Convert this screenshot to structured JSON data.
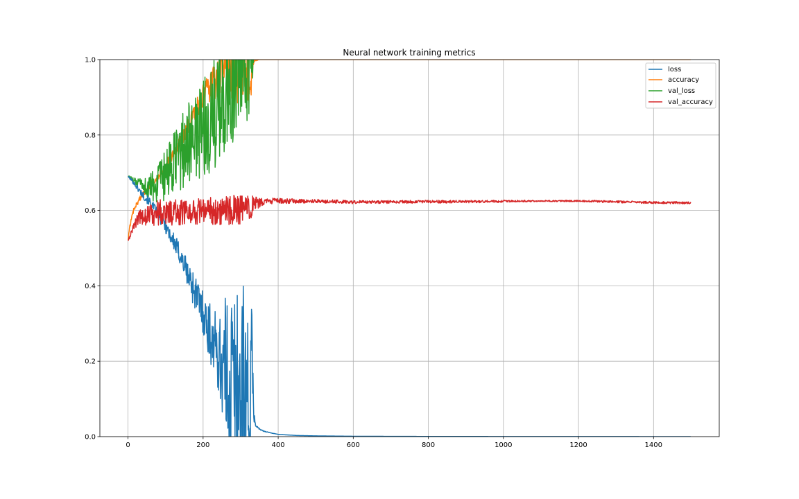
{
  "chart_data": {
    "type": "line",
    "title": "Neural network training metrics",
    "xlabel": "",
    "ylabel": "",
    "xlim": [
      -75,
      1575
    ],
    "ylim": [
      0.0,
      1.0
    ],
    "xticks": [
      0,
      200,
      400,
      600,
      800,
      1000,
      1200,
      1400
    ],
    "xtick_labels": [
      "0",
      "200",
      "400",
      "600",
      "800",
      "1000",
      "1200",
      "1400"
    ],
    "yticks": [
      0.0,
      0.2,
      0.4,
      0.6,
      0.8,
      1.0
    ],
    "ytick_labels": [
      "0.0",
      "0.2",
      "0.4",
      "0.6",
      "0.8",
      "1.0"
    ],
    "grid": true,
    "legend_position": "top-right",
    "epochs": 1500,
    "series": [
      {
        "name": "loss",
        "color": "#1f77b4",
        "x": [
          0,
          10,
          25,
          40,
          60,
          80,
          100,
          120,
          140,
          160,
          180,
          200,
          220,
          240,
          260,
          280,
          300,
          315,
          325,
          330,
          335,
          340,
          345,
          350,
          360,
          380,
          400,
          450,
          500,
          600,
          800,
          1000,
          1200,
          1400,
          1499
        ],
        "values": [
          0.69,
          0.68,
          0.66,
          0.64,
          0.62,
          0.59,
          0.56,
          0.52,
          0.48,
          0.43,
          0.38,
          0.33,
          0.27,
          0.22,
          0.17,
          0.13,
          0.09,
          0.07,
          0.06,
          0.2,
          0.06,
          0.03,
          0.025,
          0.02,
          0.015,
          0.01,
          0.006,
          0.003,
          0.002,
          0.001,
          0.0005,
          0.0003,
          0.0002,
          0.0001,
          0.0001
        ],
        "noise": [
          0.002,
          0.004,
          0.008,
          0.01,
          0.012,
          0.015,
          0.02,
          0.025,
          0.03,
          0.04,
          0.05,
          0.06,
          0.08,
          0.1,
          0.2,
          0.3,
          0.35,
          0.3,
          0.3,
          0.15,
          0.02,
          0.004,
          0.003,
          0.002,
          0.001,
          0.0005,
          0.0003,
          0,
          0,
          0,
          0,
          0,
          0,
          0,
          0
        ]
      },
      {
        "name": "accuracy",
        "color": "#ff7f0e",
        "x": [
          0,
          5,
          15,
          30,
          45,
          60,
          80,
          100,
          120,
          140,
          160,
          180,
          200,
          220,
          240,
          260,
          280,
          300,
          315,
          325,
          330,
          335,
          340,
          350,
          400,
          600,
          800,
          1000,
          1200,
          1400,
          1499
        ],
        "values": [
          0.52,
          0.56,
          0.6,
          0.63,
          0.65,
          0.67,
          0.69,
          0.72,
          0.75,
          0.78,
          0.82,
          0.86,
          0.9,
          0.93,
          0.95,
          0.97,
          0.98,
          0.985,
          0.99,
          0.9,
          0.97,
          0.995,
          0.998,
          1.0,
          1.0,
          1.0,
          1.0,
          1.0,
          1.0,
          1.0,
          1.0
        ],
        "noise": [
          0.002,
          0.005,
          0.006,
          0.008,
          0.008,
          0.01,
          0.01,
          0.012,
          0.015,
          0.02,
          0.025,
          0.03,
          0.035,
          0.04,
          0.05,
          0.08,
          0.1,
          0.1,
          0.1,
          0.08,
          0.03,
          0.004,
          0.002,
          0,
          0,
          0,
          0,
          0,
          0,
          0,
          0
        ]
      },
      {
        "name": "val_loss",
        "color": "#2ca02c",
        "x": [
          0,
          10,
          20,
          40,
          60,
          80,
          100,
          120,
          140,
          160,
          180,
          200,
          220,
          240,
          260,
          280,
          300,
          320,
          330,
          335
        ],
        "values": [
          0.69,
          0.685,
          0.675,
          0.665,
          0.66,
          0.67,
          0.69,
          0.72,
          0.75,
          0.78,
          0.8,
          0.82,
          0.84,
          0.87,
          0.9,
          0.93,
          0.96,
          0.98,
          0.99,
          1.05
        ],
        "noise": [
          0.002,
          0.005,
          0.01,
          0.02,
          0.04,
          0.05,
          0.07,
          0.08,
          0.1,
          0.11,
          0.12,
          0.13,
          0.14,
          0.15,
          0.15,
          0.15,
          0.15,
          0.15,
          0.1,
          0.05
        ]
      },
      {
        "name": "val_accuracy",
        "color": "#d62728",
        "x": [
          0,
          5,
          15,
          30,
          50,
          80,
          100,
          150,
          200,
          250,
          300,
          330,
          350,
          380,
          400,
          450,
          500,
          600,
          800,
          1000,
          1100,
          1200,
          1300,
          1400,
          1499
        ],
        "values": [
          0.52,
          0.53,
          0.56,
          0.58,
          0.59,
          0.595,
          0.595,
          0.595,
          0.6,
          0.6,
          0.6,
          0.61,
          0.62,
          0.625,
          0.625,
          0.625,
          0.625,
          0.622,
          0.623,
          0.624,
          0.625,
          0.625,
          0.623,
          0.621,
          0.62
        ],
        "noise": [
          0.002,
          0.005,
          0.01,
          0.02,
          0.03,
          0.035,
          0.035,
          0.035,
          0.035,
          0.04,
          0.04,
          0.03,
          0.012,
          0.008,
          0.007,
          0.006,
          0.005,
          0.004,
          0.004,
          0.003,
          0.002,
          0.002,
          0.003,
          0.003,
          0.003
        ]
      }
    ]
  }
}
